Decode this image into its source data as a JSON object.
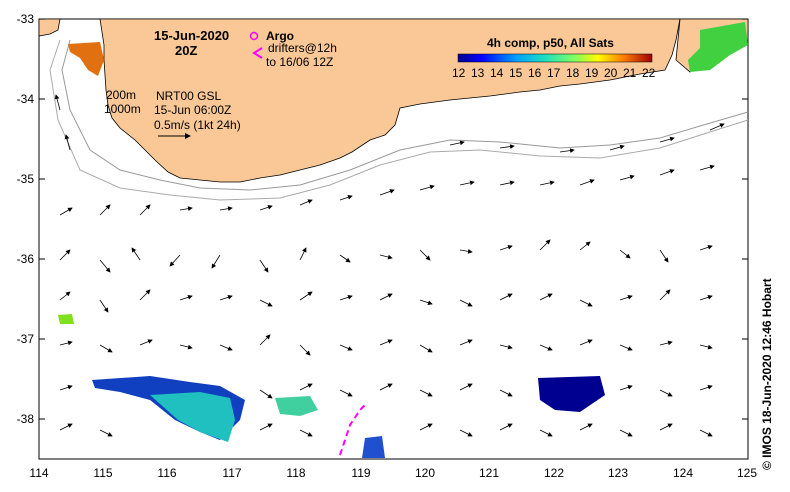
{
  "map": {
    "date": "15-Jun-2020",
    "time": "20Z",
    "legend_argo": "Argo",
    "legend_drifters_1": "drifters@12h",
    "legend_drifters_2": "to 16/06 12Z",
    "isobath_200": "200m",
    "isobath_1000": "1000m",
    "product": "NRT00 GSL",
    "product_time": "15-Jun 06:00Z",
    "scale_vector": "0.5m/s (1kt 24h)",
    "colorbar_title": "4h comp, p50, All Sats",
    "colorbar_ticks": [
      "12",
      "13",
      "14",
      "15",
      "16",
      "17",
      "18",
      "19",
      "20",
      "21",
      "22"
    ],
    "credit": "© IMOS 18-Jun-2020 12:46 Hobart",
    "lat_ticks": [
      "-33",
      "-34",
      "-35",
      "-36",
      "-37",
      "-38"
    ],
    "lon_ticks": [
      "114",
      "115",
      "116",
      "117",
      "118",
      "119",
      "120",
      "121",
      "122",
      "123",
      "124",
      "125"
    ],
    "colors": {
      "land": "#f9c896",
      "sea": "#ffffff",
      "drifter": "#ff00ff",
      "argo": "#ff00ff"
    }
  }
}
